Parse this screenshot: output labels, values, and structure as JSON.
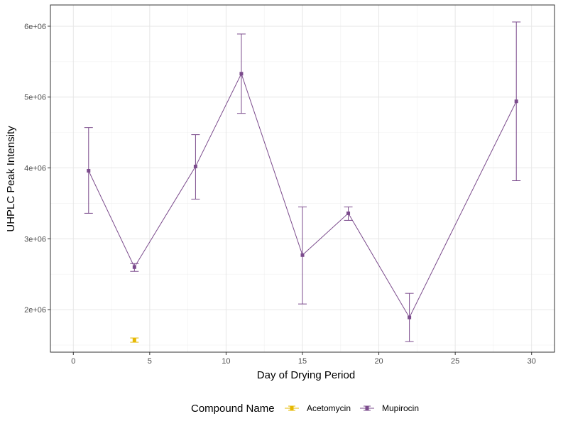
{
  "chart_data": {
    "type": "line",
    "xlabel": "Day of Drying Period",
    "ylabel": "UHPLC Peak Intensity",
    "xlim": [
      -1.5,
      31.5
    ],
    "ylim": [
      1400000,
      6300000
    ],
    "x_ticks": [
      {
        "value": 0,
        "label": "0"
      },
      {
        "value": 5,
        "label": "5"
      },
      {
        "value": 10,
        "label": "10"
      },
      {
        "value": 15,
        "label": "15"
      },
      {
        "value": 20,
        "label": "20"
      },
      {
        "value": 25,
        "label": "25"
      },
      {
        "value": 30,
        "label": "30"
      }
    ],
    "y_ticks": [
      {
        "value": 2000000,
        "label": "2e+06"
      },
      {
        "value": 3000000,
        "label": "3e+06"
      },
      {
        "value": 4000000,
        "label": "4e+06"
      },
      {
        "value": 5000000,
        "label": "5e+06"
      },
      {
        "value": 6000000,
        "label": "6e+06"
      }
    ],
    "grid": true,
    "legend": {
      "title": "Compound Name",
      "position": "bottom"
    },
    "series": [
      {
        "name": "Acetomycin",
        "color": "#E6B800",
        "points": [
          {
            "x": 4,
            "y": 1570000,
            "ymin": 1540000,
            "ymax": 1600000
          }
        ]
      },
      {
        "name": "Mupirocin",
        "color": "#7B4B8C",
        "points": [
          {
            "x": 1,
            "y": 3960000,
            "ymin": 3360000,
            "ymax": 4570000
          },
          {
            "x": 4,
            "y": 2600000,
            "ymin": 2540000,
            "ymax": 2650000
          },
          {
            "x": 8,
            "y": 4020000,
            "ymin": 3560000,
            "ymax": 4470000
          },
          {
            "x": 11,
            "y": 5330000,
            "ymin": 4770000,
            "ymax": 5890000
          },
          {
            "x": 15,
            "y": 2770000,
            "ymin": 2080000,
            "ymax": 3450000
          },
          {
            "x": 18,
            "y": 3360000,
            "ymin": 3260000,
            "ymax": 3450000
          },
          {
            "x": 22,
            "y": 1890000,
            "ymin": 1550000,
            "ymax": 2230000
          },
          {
            "x": 29,
            "y": 4940000,
            "ymin": 3820000,
            "ymax": 6060000
          }
        ]
      }
    ]
  }
}
